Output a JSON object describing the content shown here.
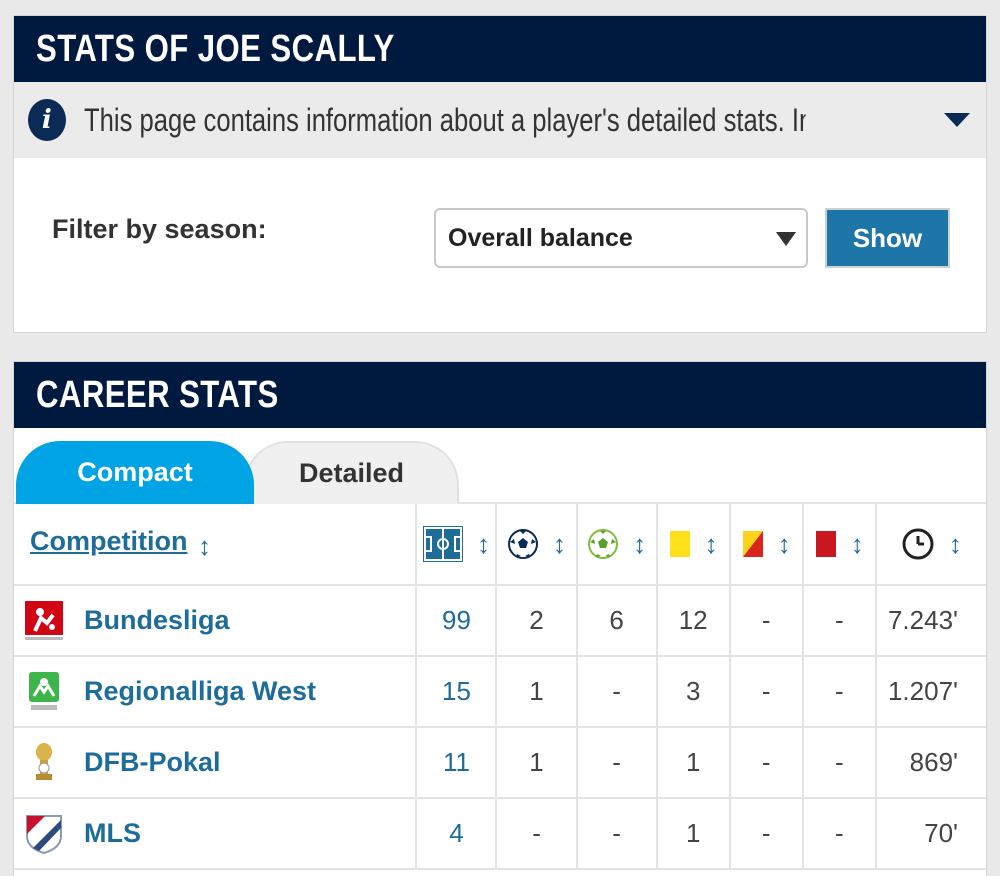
{
  "header": {
    "title": "STATS OF JOE SCALLY"
  },
  "info": {
    "text": "This page contains information about a player's detailed stats. In the info..."
  },
  "filter": {
    "label": "Filter by season:",
    "selected": "Overall balance",
    "show_label": "Show"
  },
  "career": {
    "title": "CAREER STATS",
    "tabs": [
      {
        "label": "Compact",
        "active": true
      },
      {
        "label": "Detailed",
        "active": false
      }
    ],
    "columns": {
      "competition": "Competition",
      "sort_glyph": "↕",
      "icons": [
        "appearances-pitch-icon",
        "goals-ball-icon",
        "assists-ball-icon",
        "yellow-card-icon",
        "second-yellow-card-icon",
        "red-card-icon",
        "minutes-clock-icon"
      ]
    },
    "rows": [
      {
        "competition": "Bundesliga",
        "logo": "bundesliga-logo",
        "apps": "99",
        "goals": "2",
        "assists": "6",
        "yellow": "12",
        "yellow_red": "-",
        "red": "-",
        "minutes": "7.243'"
      },
      {
        "competition": "Regionalliga West",
        "logo": "regionalliga-west-logo",
        "apps": "15",
        "goals": "1",
        "assists": "-",
        "yellow": "3",
        "yellow_red": "-",
        "red": "-",
        "minutes": "1.207'"
      },
      {
        "competition": "DFB-Pokal",
        "logo": "dfb-pokal-logo",
        "apps": "11",
        "goals": "1",
        "assists": "-",
        "yellow": "1",
        "yellow_red": "-",
        "red": "-",
        "minutes": "869'"
      },
      {
        "competition": "MLS",
        "logo": "mls-logo",
        "apps": "4",
        "goals": "-",
        "assists": "-",
        "yellow": "1",
        "yellow_red": "-",
        "red": "-",
        "minutes": "70'"
      }
    ]
  },
  "colors": {
    "header_bg": "#00193f",
    "link": "#1e6c9a",
    "tab_active": "#00a4e4",
    "button": "#1e75a8"
  }
}
